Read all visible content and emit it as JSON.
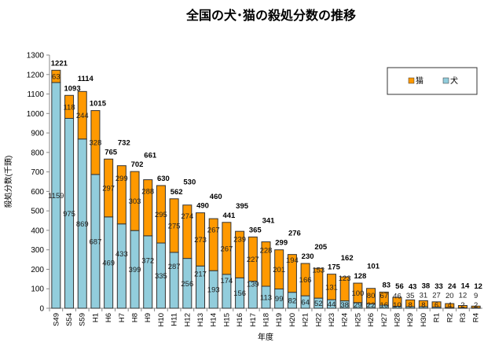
{
  "chart_data": {
    "type": "bar",
    "stacked": true,
    "title": "全国の犬･猫の殺処分数の推移",
    "xlabel": "年度",
    "ylabel": "殺処分数(千頭)",
    "ylim": [
      0,
      1300
    ],
    "yticks": [
      0,
      100,
      200,
      300,
      400,
      500,
      600,
      700,
      800,
      900,
      1000,
      1100,
      1200,
      1300
    ],
    "grid": false,
    "legend_position": "top-right",
    "categories": [
      "S49",
      "S54",
      "S59",
      "H1",
      "H6",
      "H7",
      "H8",
      "H9",
      "H10",
      "H11",
      "H12",
      "H13",
      "H14",
      "H15",
      "H16",
      "H17",
      "H18",
      "H19",
      "H20",
      "H21",
      "H22",
      "H23",
      "H24",
      "H25",
      "H26",
      "H27",
      "H28",
      "H29",
      "H30",
      "R1",
      "R2",
      "R3",
      "R4"
    ],
    "series": [
      {
        "name": "犬",
        "color": "#92CDDC",
        "values": [
          1159,
          975,
          869,
          687,
          469,
          433,
          399,
          372,
          335,
          287,
          256,
          217,
          193,
          174,
          156,
          139,
          113,
          99,
          82,
          64,
          52,
          44,
          38,
          29,
          22,
          16,
          10,
          8,
          8,
          6,
          4,
          2,
          2
        ]
      },
      {
        "name": "猫",
        "color": "#FF9900",
        "values": [
          63,
          118,
          244,
          328,
          297,
          299,
          303,
          288,
          295,
          275,
          274,
          273,
          267,
          267,
          239,
          227,
          228,
          201,
          194,
          166,
          153,
          131,
          123,
          100,
          80,
          67,
          46,
          35,
          31,
          27,
          20,
          12,
          9
        ]
      }
    ],
    "totals": [
      1221,
      1093,
      1114,
      1015,
      765,
      732,
      702,
      661,
      630,
      562,
      530,
      490,
      460,
      441,
      395,
      365,
      341,
      299,
      276,
      230,
      205,
      175,
      162,
      128,
      101,
      83,
      56,
      43,
      38,
      33,
      24,
      14,
      12
    ]
  }
}
